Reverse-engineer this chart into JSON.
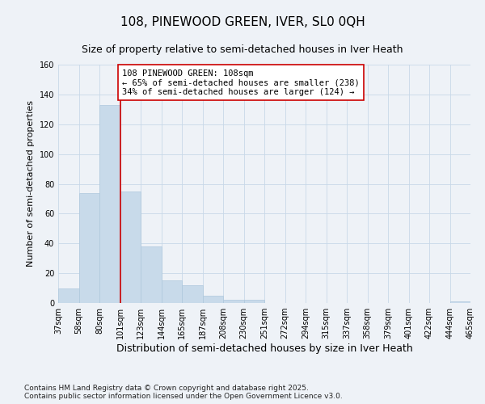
{
  "title": "108, PINEWOOD GREEN, IVER, SL0 0QH",
  "subtitle": "Size of property relative to semi-detached houses in Iver Heath",
  "xlabel": "Distribution of semi-detached houses by size in Iver Heath",
  "ylabel": "Number of semi-detached properties",
  "bar_values": [
    10,
    74,
    133,
    75,
    38,
    15,
    12,
    5,
    2,
    2,
    0,
    0,
    0,
    0,
    0,
    0,
    0,
    0,
    0,
    1
  ],
  "bin_labels": [
    "37sqm",
    "58sqm",
    "80sqm",
    "101sqm",
    "123sqm",
    "144sqm",
    "165sqm",
    "187sqm",
    "208sqm",
    "230sqm",
    "251sqm",
    "272sqm",
    "294sqm",
    "315sqm",
    "337sqm",
    "358sqm",
    "379sqm",
    "401sqm",
    "422sqm",
    "444sqm",
    "465sqm"
  ],
  "bar_color": "#c8daea",
  "bar_edge_color": "#aec8dc",
  "vline_color": "#cc0000",
  "annotation_text": "108 PINEWOOD GREEN: 108sqm\n← 65% of semi-detached houses are smaller (238)\n34% of semi-detached houses are larger (124) →",
  "annotation_box_color": "#ffffff",
  "annotation_box_edge": "#cc0000",
  "ylim": [
    0,
    160
  ],
  "yticks": [
    0,
    20,
    40,
    60,
    80,
    100,
    120,
    140,
    160
  ],
  "grid_color": "#c8d8e8",
  "background_color": "#eef2f7",
  "footer_text": "Contains HM Land Registry data © Crown copyright and database right 2025.\nContains public sector information licensed under the Open Government Licence v3.0.",
  "title_fontsize": 11,
  "subtitle_fontsize": 9,
  "xlabel_fontsize": 9,
  "ylabel_fontsize": 8,
  "tick_fontsize": 7,
  "annotation_fontsize": 7.5,
  "footer_fontsize": 6.5
}
